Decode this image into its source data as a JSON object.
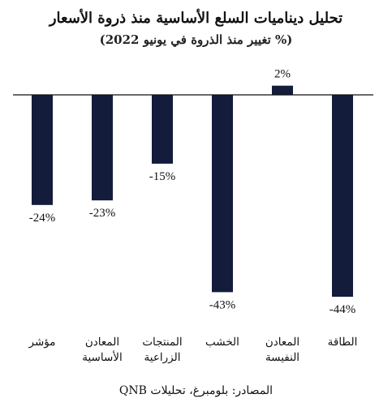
{
  "title": "تحليل ديناميات السلع الأساسية منذ ذروة الأسعار",
  "subtitle": "(% تغيير منذ الذروة في يونيو 2022)",
  "source": "المصادر: بلومبرغ، تحليلات QNB",
  "colors": {
    "bar": "#141c3c",
    "axis": "#111111"
  },
  "chart_data": {
    "type": "bar",
    "title": "تحليل ديناميات السلع الأساسية منذ ذروة الأسعار",
    "subtitle": "(% تغيير منذ الذروة في يونيو 2022)",
    "categories": [
      [
        "مؤشر"
      ],
      [
        "المعادن",
        "الأساسية"
      ],
      [
        "المنتجات",
        "الزراعية"
      ],
      [
        "الخشب"
      ],
      [
        "المعادن",
        "النفيسة"
      ],
      [
        "الطاقة"
      ]
    ],
    "values": [
      -24,
      -23,
      -15,
      -43,
      2,
      -44
    ],
    "labels": [
      "-24%",
      "-23%",
      "-15%",
      "-43%",
      "2%",
      "-44%"
    ],
    "ylim": [
      -44,
      2
    ],
    "grid": false,
    "legend": "none"
  }
}
